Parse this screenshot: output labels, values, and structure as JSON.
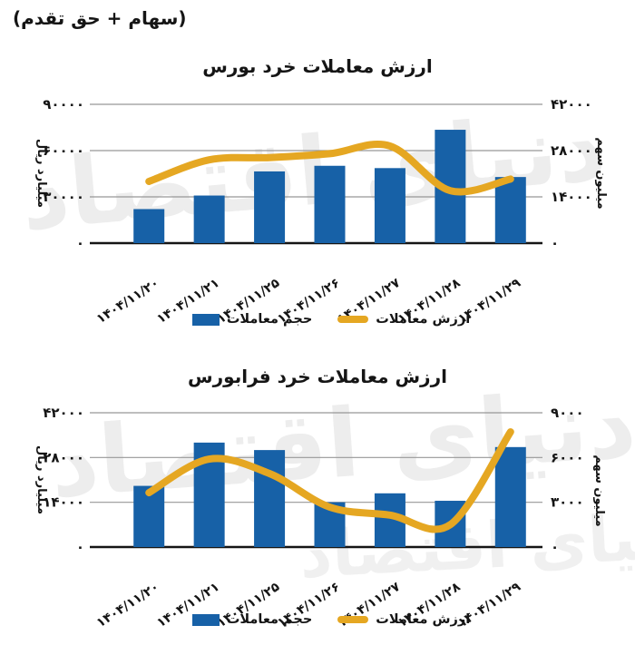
{
  "header": {
    "note": "(سهام + حق تقدم)"
  },
  "watermark_text": "دنیای اقتصاد",
  "colors": {
    "bar_blue": "#1761A7",
    "line_amber": "#E5A722",
    "grid_gray": "#979797",
    "axis_black": "#151515",
    "text": "#151515",
    "watermark_gray": "#ededed"
  },
  "legend_note": "blue bar = volume, amber line = value",
  "chart_data": [
    {
      "type": "bar+line combo",
      "title": "ارزش معاملات خرد بورس",
      "categories": [
        "۱۴۰۴/۱۱/۲۰",
        "۱۴۰۴/۱۱/۲۱",
        "۱۴۰۴/۱۱/۲۵",
        "۱۴۰۴/۱۱/۲۶",
        "۱۴۰۴/۱۱/۲۷",
        "۱۴۰۴/۱۱/۲۸",
        "۱۴۰۴/۱۱/۲۹"
      ],
      "series": [
        {
          "name": "حجم معاملات",
          "type": "bar",
          "axis": "right",
          "unit": "میلیون سهم",
          "values": [
            10300,
            14400,
            21700,
            23400,
            22700,
            34300,
            20000
          ]
        },
        {
          "name": "ارزش معاملات",
          "type": "line",
          "axis": "left",
          "unit": "میلیارد ریال",
          "values": [
            40000,
            54000,
            55500,
            58000,
            63000,
            34000,
            41500
          ]
        }
      ],
      "left_axis": {
        "label": "میلیارد ریال",
        "min": 0,
        "max": 90000,
        "step": 30000,
        "ticks": [
          "۹۰۰۰۰",
          "۶۰۰۰۰",
          "۳۰۰۰۰",
          "۰"
        ]
      },
      "right_axis": {
        "label": "میلیون سهم",
        "min": 0,
        "max": 42000,
        "step": 14000,
        "ticks": [
          "۴۲۰۰۰",
          "۲۸۰۰۰",
          "۱۴۰۰۰",
          "۰"
        ]
      },
      "grid": "horizontal",
      "legend_position": "bottom"
    },
    {
      "type": "bar+line combo",
      "title": "ارزش معاملات خرد فرابورس",
      "categories": [
        "۱۴۰۴/۱۱/۲۰",
        "۱۴۰۴/۱۱/۲۱",
        "۱۴۰۴/۱۱/۲۵",
        "۱۴۰۴/۱۱/۲۶",
        "۱۴۰۴/۱۱/۲۷",
        "۱۴۰۴/۱۱/۲۸",
        "۱۴۰۴/۱۱/۲۹"
      ],
      "series": [
        {
          "name": "حجم معاملات",
          "type": "bar",
          "axis": "right",
          "unit": "میلیون سهم",
          "values": [
            4100,
            7000,
            6500,
            3000,
            3600,
            3100,
            6700
          ]
        },
        {
          "name": "ارزش معاملات",
          "type": "line",
          "axis": "left",
          "unit": "میلیارد ریال",
          "values": [
            17000,
            27500,
            23000,
            12500,
            10000,
            7000,
            36000
          ]
        }
      ],
      "left_axis": {
        "label": "میلیارد ریال",
        "min": 0,
        "max": 42000,
        "step": 14000,
        "ticks": [
          "۴۲۰۰۰",
          "۲۸۰۰۰",
          "۱۴۰۰۰",
          "۰"
        ]
      },
      "right_axis": {
        "label": "میلیون سهم",
        "min": 0,
        "max": 9000,
        "step": 3000,
        "ticks": [
          "۹۰۰۰",
          "۶۰۰۰",
          "۳۰۰۰",
          "۰"
        ]
      },
      "grid": "horizontal",
      "legend_position": "bottom"
    }
  ]
}
